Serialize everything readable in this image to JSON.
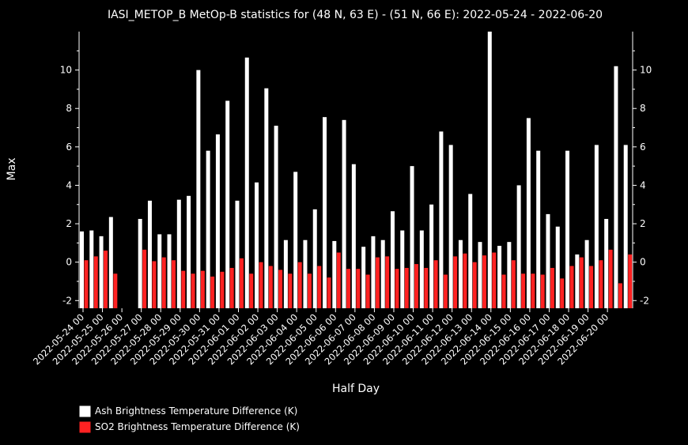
{
  "chart_data": {
    "type": "bar",
    "title": "IASI_METOP_B MetOp-B statistics for (48 N, 63 E) - (51 N, 66 E): 2022-05-24 - 2022-06-20",
    "xlabel": "Half Day",
    "ylabel": "Max",
    "ylim": [
      -2.4,
      12.0
    ],
    "yticks": [
      -2,
      0,
      2,
      4,
      6,
      8,
      10
    ],
    "grid": false,
    "legend_position": "bottom-left",
    "tick_labels": [
      "2022-05-24 00",
      "2022-05-25 00",
      "2022-05-26 00",
      "2022-05-27 00",
      "2022-05-28 00",
      "2022-05-29 00",
      "2022-05-30 00",
      "2022-05-31 00",
      "2022-06-01 00",
      "2022-06-02 00",
      "2022-06-03 00",
      "2022-06-04 00",
      "2022-06-05 00",
      "2022-06-06 00",
      "2022-06-07 00",
      "2022-06-08 00",
      "2022-06-09 00",
      "2022-06-10 00",
      "2022-06-11 00",
      "2022-06-12 00",
      "2022-06-13 00",
      "2022-06-14 00",
      "2022-06-15 00",
      "2022-06-16 00",
      "2022-06-17 00",
      "2022-06-18 00",
      "2022-06-19 00",
      "2022-06-20 00"
    ],
    "series": [
      {
        "name": "Ash Brightness Temperature Difference (K)",
        "color": "#ffffff",
        "values": [
          1.6,
          1.65,
          1.35,
          2.35,
          null,
          null,
          2.25,
          3.2,
          1.45,
          1.45,
          3.25,
          3.45,
          10.0,
          5.8,
          6.65,
          8.4,
          3.2,
          10.65,
          4.15,
          9.05,
          7.1,
          1.15,
          4.7,
          1.15,
          2.75,
          7.55,
          1.1,
          7.4,
          5.1,
          0.8,
          1.35,
          1.15,
          2.65,
          1.65,
          5.0,
          1.65,
          3.0,
          6.8,
          6.1,
          1.15,
          3.55,
          1.05,
          12.0,
          0.85,
          1.05,
          4.0,
          7.5,
          5.8,
          2.5,
          1.85,
          5.8,
          0.4,
          1.15,
          6.1,
          2.25,
          10.2,
          6.1
        ]
      },
      {
        "name": "SO2 Brightness Temperature Difference (K)",
        "color": "#ff2222",
        "values": [
          0.1,
          0.3,
          0.6,
          -0.6,
          null,
          null,
          0.65,
          0.05,
          0.25,
          0.1,
          -0.45,
          -0.6,
          -0.45,
          -0.75,
          -0.5,
          -0.3,
          0.2,
          -0.6,
          0.0,
          -0.2,
          -0.4,
          -0.6,
          0.0,
          -0.6,
          -0.2,
          -0.8,
          0.5,
          -0.35,
          -0.35,
          -0.65,
          0.25,
          0.3,
          -0.35,
          -0.3,
          -0.1,
          -0.3,
          0.1,
          -0.65,
          0.3,
          0.45,
          0.0,
          0.35,
          0.5,
          -0.65,
          0.1,
          -0.6,
          -0.6,
          -0.65,
          -0.3,
          -0.85,
          -0.2,
          0.25,
          -0.2,
          0.1,
          0.65,
          -1.1,
          0.4
        ]
      }
    ]
  }
}
